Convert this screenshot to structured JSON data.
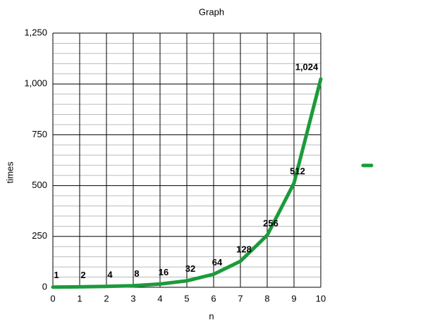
{
  "chart_data": {
    "type": "line",
    "title": "Graph",
    "x_label": "n",
    "y_label": "times",
    "x": [
      0,
      1,
      2,
      3,
      4,
      5,
      6,
      7,
      8,
      9,
      10
    ],
    "series": [
      {
        "color": "#1a9b3a",
        "values": [
          1,
          2,
          4,
          8,
          16,
          32,
          64,
          128,
          256,
          512,
          1024
        ],
        "value_labels": [
          "1",
          "2",
          "4",
          "8",
          "16",
          "32",
          "64",
          "128",
          "256",
          "512",
          "1,024"
        ]
      }
    ],
    "xlim": [
      0,
      10
    ],
    "xticks": [
      0,
      1,
      2,
      3,
      4,
      5,
      6,
      7,
      8,
      9,
      10
    ],
    "ylim": [
      0,
      1250
    ],
    "yticks": [
      0,
      250,
      500,
      750,
      {
        "value": 1000,
        "label": "1,000"
      },
      {
        "value": 1250,
        "label": "1,250"
      }
    ],
    "grid": true,
    "legend": "right"
  }
}
